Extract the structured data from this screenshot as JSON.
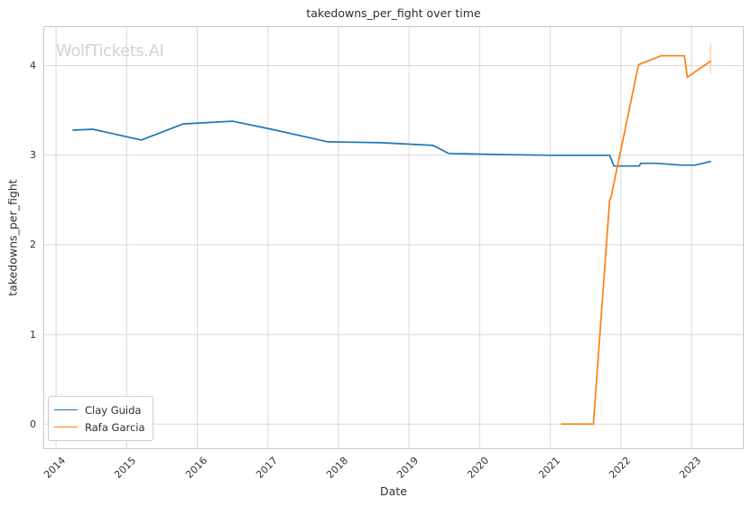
{
  "watermark": "WolfTickets.AI",
  "colors": {
    "background": "#ffffff",
    "grid": "#d8d8d8",
    "spine": "#c9c9c9",
    "text": "#2e2e2e",
    "watermark": "#d2d2d2",
    "series_blue": "#1f77b4",
    "series_orange": "#ff7f0e"
  },
  "chart_data": {
    "type": "line",
    "title": "takedowns_per_fight over time",
    "xlabel": "Date",
    "ylabel": "takedowns_per_fight",
    "xlim": [
      2013.82,
      2023.74
    ],
    "ylim": [
      -0.28,
      4.44
    ],
    "x_ticks": [
      2014,
      2015,
      2016,
      2017,
      2018,
      2019,
      2020,
      2021,
      2022,
      2023
    ],
    "y_ticks": [
      0,
      1,
      2,
      3,
      4
    ],
    "grid": true,
    "legend_position": "lower-left",
    "series": [
      {
        "name": "Clay Guida",
        "color": "#1f77b4",
        "points": [
          [
            2014.24,
            3.28
          ],
          [
            2014.52,
            3.29
          ],
          [
            2015.21,
            3.17
          ],
          [
            2015.8,
            3.35
          ],
          [
            2016.5,
            3.38
          ],
          [
            2017.05,
            3.29
          ],
          [
            2017.85,
            3.15
          ],
          [
            2018.6,
            3.14
          ],
          [
            2019.34,
            3.11
          ],
          [
            2019.56,
            3.02
          ],
          [
            2020.2,
            3.01
          ],
          [
            2021.0,
            3.0
          ],
          [
            2021.84,
            3.0
          ],
          [
            2021.9,
            2.88
          ],
          [
            2022.26,
            2.88
          ],
          [
            2022.28,
            2.91
          ],
          [
            2022.5,
            2.91
          ],
          [
            2022.85,
            2.89
          ],
          [
            2023.05,
            2.89
          ],
          [
            2023.27,
            2.93
          ]
        ]
      },
      {
        "name": "Rafa Garcia",
        "color": "#ff7f0e",
        "points": [
          [
            2021.16,
            0.0
          ],
          [
            2021.61,
            0.0
          ],
          [
            2021.84,
            2.5
          ],
          [
            2021.86,
            2.53
          ],
          [
            2022.25,
            4.01
          ],
          [
            2022.57,
            4.11
          ],
          [
            2022.9,
            4.11
          ],
          [
            2022.94,
            3.87
          ],
          [
            2023.27,
            4.05
          ]
        ],
        "end_bar": {
          "x": 2023.27,
          "y1": 3.9,
          "y2": 4.25,
          "opacity": 0.3
        }
      }
    ]
  }
}
